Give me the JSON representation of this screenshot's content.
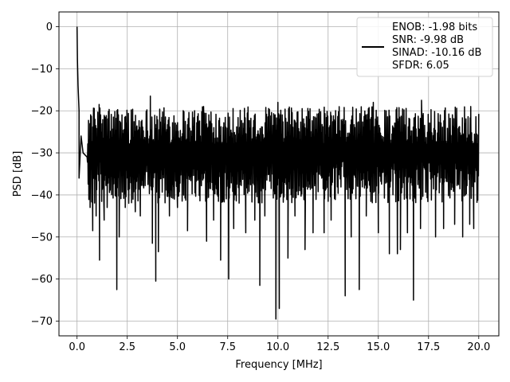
{
  "chart_data": {
    "type": "line",
    "title": "",
    "xlabel": "Frequency [MHz]",
    "ylabel": "PSD [dB]",
    "xlim": [
      -0.9,
      21.0
    ],
    "ylim": [
      -73.5,
      3.5
    ],
    "xticks": [
      0.0,
      2.5,
      5.0,
      7.5,
      10.0,
      12.5,
      15.0,
      17.5,
      20.0
    ],
    "xtick_labels": [
      "0.0",
      "2.5",
      "5.0",
      "7.5",
      "10.0",
      "12.5",
      "15.0",
      "17.5",
      "20.0"
    ],
    "yticks": [
      0,
      -10,
      -20,
      -30,
      -40,
      -50,
      -60,
      -70
    ],
    "ytick_labels": [
      "0",
      "−10",
      "−20",
      "−30",
      "−40",
      "−50",
      "−60",
      "−70"
    ],
    "grid": true,
    "legend": {
      "placement": "top-right",
      "lines": [
        "ENOB: -1.98 bits",
        "SNR: -9.98 dB",
        "SINAD: -10.16 dB",
        "SFDR: 6.05"
      ]
    },
    "series": [
      {
        "color": "#000000",
        "noise_floor_db": -30,
        "noise_band_db": [
          -42,
          -19
        ],
        "x_range": [
          0.0,
          20.0
        ],
        "x": [
          0.0,
          0.02,
          0.05,
          0.1,
          0.2,
          0.3,
          0.5
        ],
        "y": [
          0,
          -8,
          -14,
          -20,
          -26,
          -30,
          -31
        ],
        "dips": [
          {
            "x": 0.1,
            "y": -36
          },
          {
            "x": 0.65,
            "y": -43
          },
          {
            "x": 0.78,
            "y": -48.5
          },
          {
            "x": 0.95,
            "y": -45
          },
          {
            "x": 1.12,
            "y": -55.5
          },
          {
            "x": 1.35,
            "y": -46
          },
          {
            "x": 1.5,
            "y": -43
          },
          {
            "x": 1.98,
            "y": -62.5
          },
          {
            "x": 2.1,
            "y": -50
          },
          {
            "x": 2.4,
            "y": -43
          },
          {
            "x": 2.9,
            "y": -44
          },
          {
            "x": 3.15,
            "y": -45
          },
          {
            "x": 3.75,
            "y": -51.5
          },
          {
            "x": 3.92,
            "y": -60.5
          },
          {
            "x": 4.05,
            "y": -53.5
          },
          {
            "x": 4.6,
            "y": -45
          },
          {
            "x": 5.0,
            "y": -43
          },
          {
            "x": 5.5,
            "y": -48.5
          },
          {
            "x": 6.45,
            "y": -51
          },
          {
            "x": 6.8,
            "y": -46
          },
          {
            "x": 7.15,
            "y": -55.5
          },
          {
            "x": 7.55,
            "y": -60
          },
          {
            "x": 7.8,
            "y": -48
          },
          {
            "x": 8.4,
            "y": -49
          },
          {
            "x": 8.85,
            "y": -46
          },
          {
            "x": 9.1,
            "y": -61.5
          },
          {
            "x": 9.35,
            "y": -45
          },
          {
            "x": 9.9,
            "y": -69.5
          },
          {
            "x": 10.07,
            "y": -67
          },
          {
            "x": 10.5,
            "y": -55
          },
          {
            "x": 10.85,
            "y": -45
          },
          {
            "x": 11.35,
            "y": -53
          },
          {
            "x": 11.75,
            "y": -49
          },
          {
            "x": 12.3,
            "y": -49
          },
          {
            "x": 12.65,
            "y": -46
          },
          {
            "x": 13.35,
            "y": -64
          },
          {
            "x": 13.65,
            "y": -50
          },
          {
            "x": 14.05,
            "y": -62.5
          },
          {
            "x": 14.4,
            "y": -45
          },
          {
            "x": 15.0,
            "y": -49
          },
          {
            "x": 15.55,
            "y": -54
          },
          {
            "x": 15.95,
            "y": -54
          },
          {
            "x": 16.1,
            "y": -53
          },
          {
            "x": 16.45,
            "y": -49
          },
          {
            "x": 16.75,
            "y": -65
          },
          {
            "x": 17.1,
            "y": -48
          },
          {
            "x": 17.85,
            "y": -50
          },
          {
            "x": 18.25,
            "y": -48
          },
          {
            "x": 18.8,
            "y": -47
          },
          {
            "x": 19.2,
            "y": -50
          },
          {
            "x": 19.55,
            "y": -47
          },
          {
            "x": 19.75,
            "y": -48
          }
        ],
        "peaks": [
          {
            "x": 1.1,
            "y": -18.5
          },
          {
            "x": 3.65,
            "y": -16.5
          },
          {
            "x": 6.3,
            "y": -19
          },
          {
            "x": 10.0,
            "y": -18
          },
          {
            "x": 11.6,
            "y": -19.5
          },
          {
            "x": 14.75,
            "y": -18
          },
          {
            "x": 17.15,
            "y": -17.5
          },
          {
            "x": 19.6,
            "y": -19
          }
        ]
      }
    ]
  }
}
